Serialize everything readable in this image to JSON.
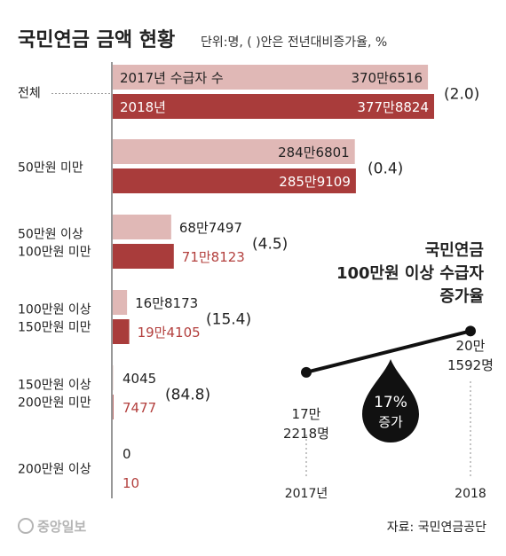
{
  "header": {
    "title": "국민연금 금액 현황",
    "unit_note": "단위:명, ( )안은 전년대비증가율, %"
  },
  "colors": {
    "bar_2017": "#e0b8b6",
    "bar_2018": "#a93c3b",
    "label_red": "#b3403e",
    "text_dark": "#222222",
    "axis": "#555555"
  },
  "chart_data": [
    {
      "type": "bar",
      "orientation": "horizontal",
      "categories": [
        "전체",
        "50만원 미만",
        "50만원 이상 100만원 미만",
        "100만원 이상 150만원 미만",
        "150만원 이상 200만원 미만",
        "200만원 이상"
      ],
      "category_lines": [
        [
          "전체"
        ],
        [
          "50만원 미만"
        ],
        [
          "50만원 이상",
          "100만원 미만"
        ],
        [
          "100만원 이상",
          "150만원 미만"
        ],
        [
          "150만원 이상",
          "200만원 미만"
        ],
        [
          "200만원 이상"
        ]
      ],
      "series": [
        {
          "name": "2017년",
          "values": [
            3706516,
            2846801,
            687497,
            168173,
            4045,
            0
          ],
          "labels": [
            "370만6516",
            "284만6801",
            "68만7497",
            "16만8173",
            "4045",
            "0"
          ]
        },
        {
          "name": "2018년",
          "values": [
            3778824,
            2859109,
            718123,
            194105,
            7477,
            10
          ],
          "labels": [
            "377만8824",
            "285만9109",
            "71만8123",
            "19만4105",
            "7477",
            "10"
          ]
        }
      ],
      "growth_rate_labels": [
        "(2.0)",
        "(0.4)",
        "(4.5)",
        "(15.4)",
        "(84.8)",
        ""
      ],
      "inbar_series_labels": [
        "2017년 수급자 수",
        "2018년"
      ]
    },
    {
      "type": "line",
      "title_lines": [
        "국민연금",
        "100만원 이상 수급자",
        "증가율"
      ],
      "x": [
        "2017년",
        "2018"
      ],
      "values": [
        172218,
        201592
      ],
      "value_labels": [
        [
          "17만",
          "2218명"
        ],
        [
          "20만",
          "1592명"
        ]
      ],
      "callout_lines": [
        "17%",
        "증가"
      ]
    }
  ],
  "footer": {
    "logo_text": "중앙일보",
    "source": "자료: 국민연금공단"
  }
}
